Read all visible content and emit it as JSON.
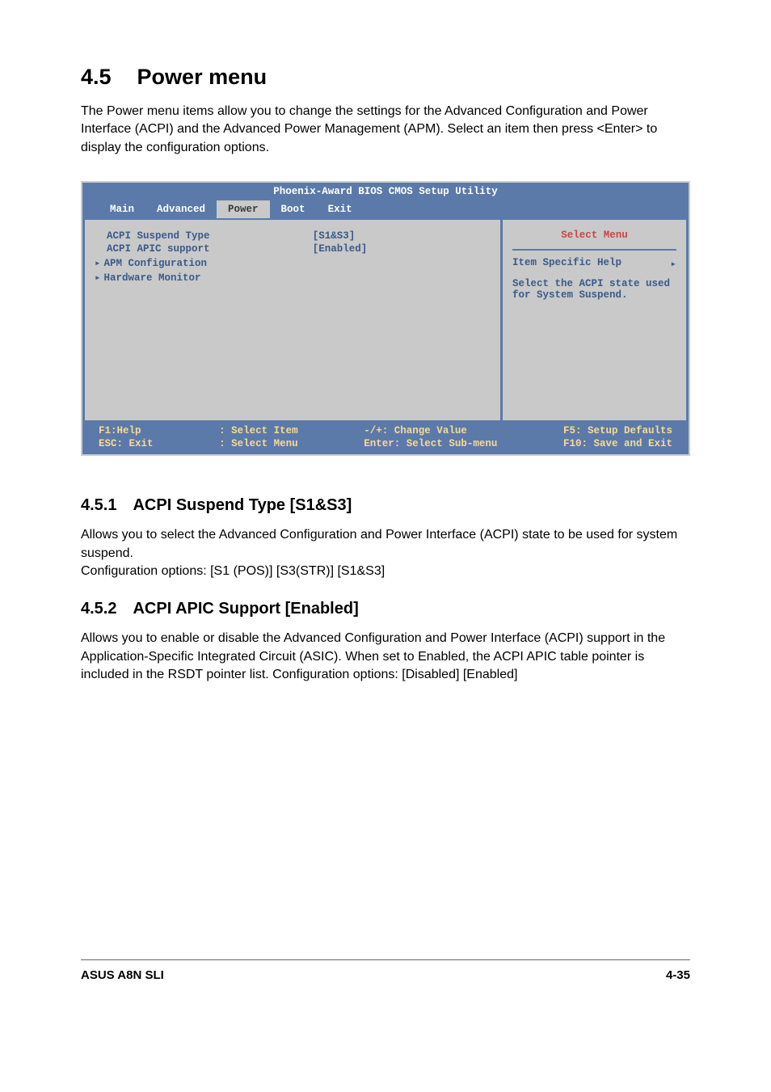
{
  "section": {
    "number": "4.5",
    "title": "Power menu",
    "intro": "The Power menu items allow you to change the settings for the Advanced Configuration and Power Interface (ACPI) and the Advanced Power Management (APM). Select an item then press <Enter> to display the configuration options."
  },
  "bios": {
    "header": "Phoenix-Award BIOS CMOS Setup Utility",
    "tabs": [
      "Main",
      "Advanced",
      "Power",
      "Boot",
      "Exit"
    ],
    "active_tab_index": 2,
    "items": [
      {
        "label": "ACPI Suspend Type",
        "value": "[S1&S3]",
        "has_marker": false
      },
      {
        "label": "ACPI APIC support",
        "value": "[Enabled]",
        "has_marker": false
      },
      {
        "label": "APM Configuration",
        "value": "",
        "has_marker": true
      },
      {
        "label": "Hardware Monitor",
        "value": "",
        "has_marker": true
      }
    ],
    "side": {
      "title": "Select Menu",
      "subtitle": "Item Specific Help",
      "text": "Select the ACPI state used for System Suspend."
    },
    "footer": {
      "col1": [
        "F1:Help",
        "ESC: Exit"
      ],
      "col2": [
        ": Select Item",
        ": Select Menu"
      ],
      "col3": [
        "-/+: Change Value",
        "Enter: Select Sub-menu"
      ],
      "col4": [
        "F5: Setup Defaults",
        "F10: Save and Exit"
      ]
    }
  },
  "sub1": {
    "number": "4.5.1",
    "title": "ACPI Suspend Type [S1&S3]",
    "text": "Allows you to select the Advanced Configuration and Power Interface (ACPI) state to be used for system suspend.\nConfiguration options: [S1 (POS)] [S3(STR)] [S1&S3]"
  },
  "sub2": {
    "number": "4.5.2",
    "title": "ACPI APIC Support [Enabled]",
    "text": "Allows you to enable or disable the Advanced Configuration and Power Interface (ACPI) support in the Application-Specific Integrated Circuit (ASIC). When set to Enabled, the ACPI APIC table pointer is included in the RSDT pointer list. Configuration options: [Disabled] [Enabled]"
  },
  "footer": {
    "left": "ASUS A8N SLI",
    "right": "4-35"
  },
  "colors": {
    "bios_header_bg": "#5b7aa9",
    "bios_body_bg": "#c9c9c9",
    "bios_text": "#3b5a89",
    "footer_text": "#fada92",
    "side_title": "#cc4444"
  }
}
